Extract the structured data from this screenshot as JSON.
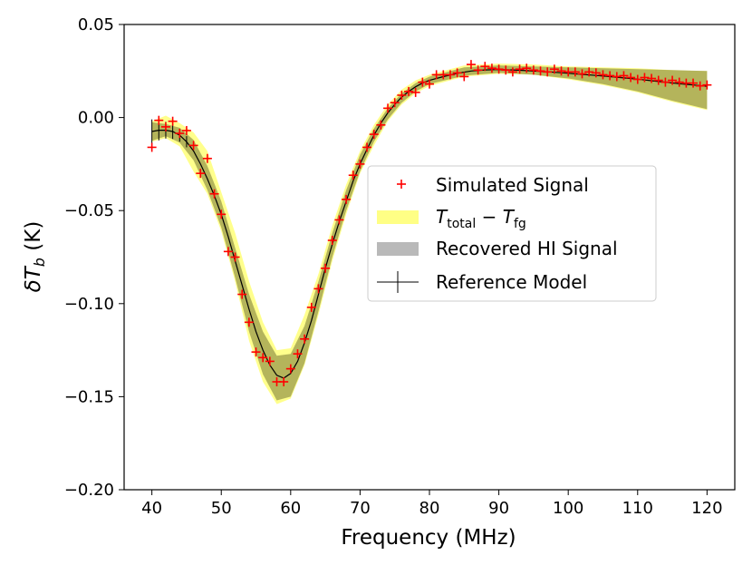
{
  "chart_data": {
    "type": "line",
    "xlabel": "Frequency (MHz)",
    "ylabel": {
      "base": "δT",
      "sub": "b",
      "unit": " (K)"
    },
    "xlim": [
      36,
      124
    ],
    "ylim": [
      -0.2,
      0.05
    ],
    "x_ticks": [
      40,
      50,
      60,
      70,
      80,
      90,
      100,
      110,
      120
    ],
    "y_ticks": [
      0.05,
      0.0,
      -0.05,
      -0.1,
      -0.15,
      -0.2
    ],
    "x_tick_labels": [
      "40",
      "50",
      "60",
      "70",
      "80",
      "90",
      "100",
      "110",
      "120"
    ],
    "y_tick_labels": [
      "0.05",
      "0.00",
      "−0.05",
      "−0.10",
      "−0.15",
      "−0.20"
    ],
    "grid": false,
    "legend_position": "center-right",
    "legend": {
      "simulated": "Simulated Signal",
      "total_minus_fg": {
        "t1": "T",
        "s1": "total",
        "mid": " − ",
        "t2": "T",
        "s2": "fg"
      },
      "recovered": "Recovered HI Signal",
      "reference": "Reference Model"
    },
    "colors": {
      "simulated": "#ff0000",
      "total_minus_fg_band": "#ffff66",
      "recovered_band": "#a8a8a8",
      "overlap_band": "#a7a348",
      "reference": "#000000"
    },
    "series": [
      {
        "name": "Reference Model",
        "kind": "line",
        "x": [
          40,
          41,
          42,
          43,
          44,
          45,
          46,
          47,
          48,
          49,
          50,
          51,
          52,
          53,
          54,
          55,
          56,
          57,
          58,
          59,
          60,
          61,
          62,
          63,
          64,
          65,
          66,
          67,
          68,
          69,
          70,
          71,
          72,
          73,
          74,
          75,
          76,
          77,
          78,
          79,
          80,
          82,
          84,
          86,
          88,
          90,
          92,
          94,
          96,
          98,
          100,
          102,
          104,
          106,
          108,
          110,
          112,
          114,
          116,
          118,
          120
        ],
        "y": [
          -0.0075,
          -0.0068,
          -0.0068,
          -0.0075,
          -0.0095,
          -0.013,
          -0.018,
          -0.025,
          -0.033,
          -0.042,
          -0.052,
          -0.064,
          -0.077,
          -0.09,
          -0.103,
          -0.115,
          -0.125,
          -0.133,
          -0.1385,
          -0.14,
          -0.1375,
          -0.131,
          -0.121,
          -0.109,
          -0.095,
          -0.081,
          -0.068,
          -0.056,
          -0.045,
          -0.034,
          -0.025,
          -0.017,
          -0.0095,
          -0.003,
          0.0025,
          0.007,
          0.011,
          0.014,
          0.0165,
          0.0185,
          0.02,
          0.022,
          0.0238,
          0.025,
          0.0256,
          0.0258,
          0.0256,
          0.0252,
          0.0248,
          0.0243,
          0.0238,
          0.0232,
          0.0226,
          0.022,
          0.0213,
          0.0206,
          0.0198,
          0.019,
          0.0182,
          0.0175,
          0.0168
        ]
      },
      {
        "name": "Simulated Signal",
        "kind": "scatter",
        "x": [
          40,
          41,
          42,
          43,
          44,
          45,
          46,
          47,
          48,
          49,
          50,
          51,
          52,
          53,
          54,
          55,
          56,
          57,
          58,
          59,
          60,
          61,
          62,
          63,
          64,
          65,
          66,
          67,
          68,
          69,
          70,
          71,
          72,
          73,
          74,
          75,
          76,
          77,
          78,
          79,
          80,
          81,
          82,
          83,
          84,
          85,
          86,
          87,
          88,
          89,
          90,
          91,
          92,
          93,
          94,
          95,
          96,
          97,
          98,
          99,
          100,
          101,
          102,
          103,
          104,
          105,
          106,
          107,
          108,
          109,
          110,
          111,
          112,
          113,
          114,
          115,
          116,
          117,
          118,
          119,
          120
        ],
        "y": [
          -0.016,
          -0.0015,
          -0.005,
          -0.002,
          -0.0085,
          -0.007,
          -0.015,
          -0.03,
          -0.022,
          -0.041,
          -0.052,
          -0.072,
          -0.075,
          -0.095,
          -0.11,
          -0.126,
          -0.129,
          -0.131,
          -0.142,
          -0.142,
          -0.135,
          -0.127,
          -0.119,
          -0.102,
          -0.092,
          -0.081,
          -0.066,
          -0.055,
          -0.044,
          -0.031,
          -0.025,
          -0.016,
          -0.009,
          -0.004,
          0.005,
          0.008,
          0.012,
          0.014,
          0.0135,
          0.019,
          0.018,
          0.023,
          0.023,
          0.023,
          0.024,
          0.022,
          0.0285,
          0.0255,
          0.0275,
          0.0265,
          0.026,
          0.0255,
          0.0245,
          0.026,
          0.0265,
          0.0255,
          0.025,
          0.0245,
          0.026,
          0.025,
          0.0245,
          0.0245,
          0.0235,
          0.0245,
          0.024,
          0.023,
          0.0225,
          0.022,
          0.0225,
          0.0215,
          0.0205,
          0.0215,
          0.021,
          0.02,
          0.019,
          0.02,
          0.019,
          0.0185,
          0.0185,
          0.017,
          0.0175
        ]
      },
      {
        "name": "Recovered HI Signal",
        "kind": "band",
        "x": [
          40,
          42,
          44,
          46,
          48,
          50,
          52,
          54,
          56,
          58,
          60,
          62,
          64,
          66,
          68,
          70,
          72,
          74,
          76,
          78,
          80,
          85,
          90,
          95,
          100,
          105,
          110,
          115,
          120
        ],
        "lower": [
          -0.0125,
          -0.01,
          -0.0135,
          -0.023,
          -0.039,
          -0.059,
          -0.086,
          -0.115,
          -0.138,
          -0.152,
          -0.15,
          -0.132,
          -0.104,
          -0.075,
          -0.05,
          -0.029,
          -0.013,
          -0.001,
          0.008,
          0.014,
          0.018,
          0.0225,
          0.024,
          0.023,
          0.021,
          0.018,
          0.014,
          0.009,
          0.0045
        ],
        "upper": [
          -0.0025,
          -0.0035,
          -0.0055,
          -0.012,
          -0.026,
          -0.045,
          -0.07,
          -0.095,
          -0.115,
          -0.128,
          -0.127,
          -0.112,
          -0.088,
          -0.062,
          -0.039,
          -0.02,
          -0.006,
          0.005,
          0.013,
          0.0185,
          0.022,
          0.027,
          0.028,
          0.0275,
          0.027,
          0.0265,
          0.026,
          0.0255,
          0.025
        ]
      },
      {
        "name": "T_total − T_fg",
        "kind": "band",
        "x": [
          40,
          42,
          44,
          46,
          48,
          50,
          52,
          54,
          56,
          58,
          60,
          62,
          64,
          66,
          68,
          70,
          72,
          74,
          76,
          78,
          80,
          85,
          90,
          95,
          100,
          105,
          110,
          115,
          120
        ],
        "lower": [
          -0.013,
          -0.011,
          -0.0155,
          -0.029,
          -0.041,
          -0.061,
          -0.088,
          -0.12,
          -0.142,
          -0.154,
          -0.151,
          -0.133,
          -0.106,
          -0.077,
          -0.052,
          -0.03,
          -0.015,
          -0.002,
          0.007,
          0.013,
          0.017,
          0.022,
          0.0235,
          0.023,
          0.0205,
          0.0175,
          0.0135,
          0.0085,
          0.004
        ],
        "upper": [
          -0.002,
          0.001,
          -0.003,
          -0.008,
          -0.018,
          -0.04,
          -0.062,
          -0.088,
          -0.11,
          -0.125,
          -0.124,
          -0.106,
          -0.084,
          -0.058,
          -0.036,
          -0.018,
          -0.004,
          0.007,
          0.015,
          0.02,
          0.023,
          0.028,
          0.029,
          0.0285,
          0.0275,
          0.027,
          0.0265,
          0.0255,
          0.025
        ]
      }
    ],
    "reference_errorbars": {
      "x": [
        40,
        41,
        42,
        43,
        44,
        45
      ],
      "half_height": [
        0.0065,
        0.0055,
        0.0045,
        0.004,
        0.0035,
        0.003
      ]
    }
  }
}
